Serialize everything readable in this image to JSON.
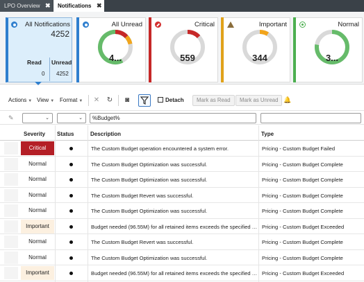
{
  "tabs": [
    {
      "label": "LPO Overview",
      "close": "✖"
    },
    {
      "label": "Notifications",
      "close": "✖"
    }
  ],
  "summary": {
    "all": {
      "title": "All Notifications",
      "total": "4252",
      "read_label": "Read",
      "read_value": "0",
      "unread_label": "Unread",
      "unread_value": "4252"
    },
    "cards": [
      {
        "key": "unread",
        "title": "All Unread",
        "value": "4...",
        "accent": "#2f7fce",
        "icon": "radio-selected-icon"
      },
      {
        "key": "critical",
        "title": "Critical",
        "value": "559",
        "accent": "#c62828",
        "icon": "critical-icon"
      },
      {
        "key": "important",
        "title": "Important",
        "value": "344",
        "accent": "#e0a21a",
        "icon": "warning-icon"
      },
      {
        "key": "normal",
        "title": "Normal",
        "value": "3...",
        "accent": "#4caf50",
        "icon": "normal-dot-icon"
      }
    ]
  },
  "toolbar": {
    "actions": "Actions",
    "view": "View",
    "format": "Format",
    "detach": "Detach",
    "mark_read": "Mark as Read",
    "mark_unread": "Mark as Unread"
  },
  "filters": {
    "description_value": "%Budget%"
  },
  "columns": {
    "severity": "Severity",
    "status": "Status",
    "description": "Description",
    "type": "Type"
  },
  "rows": [
    {
      "severity": "Critical",
      "level": "critical",
      "description": "The Custom Budget operation encountered a system error.",
      "type": "Pricing - Custom Budget Failed"
    },
    {
      "severity": "Normal",
      "level": "normal",
      "description": "The Custom Budget Optimization was successful.",
      "type": "Pricing - Custom Budget Complete"
    },
    {
      "severity": "Normal",
      "level": "normal",
      "description": "The Custom Budget Optimization was successful.",
      "type": "Pricing - Custom Budget Complete"
    },
    {
      "severity": "Normal",
      "level": "normal",
      "description": "The Custom Budget Revert was successful.",
      "type": "Pricing - Custom Budget Complete"
    },
    {
      "severity": "Normal",
      "level": "normal",
      "description": "The Custom Budget Optimization was successful.",
      "type": "Pricing - Custom Budget Complete"
    },
    {
      "severity": "Important",
      "level": "important",
      "description": "Budget needed (96.55M) for all retained items exceeds the specified T...",
      "type": "Pricing - Custom Budget Exceeded"
    },
    {
      "severity": "Normal",
      "level": "normal",
      "description": "The Custom Budget Revert was successful.",
      "type": "Pricing - Custom Budget Complete"
    },
    {
      "severity": "Normal",
      "level": "normal",
      "description": "The Custom Budget Optimization was successful.",
      "type": "Pricing - Custom Budget Complete"
    },
    {
      "severity": "Important",
      "level": "important",
      "description": "Budget needed (96.55M) for all retained items exceeds the specified T...",
      "type": "Pricing - Custom Budget Exceeded"
    }
  ]
}
